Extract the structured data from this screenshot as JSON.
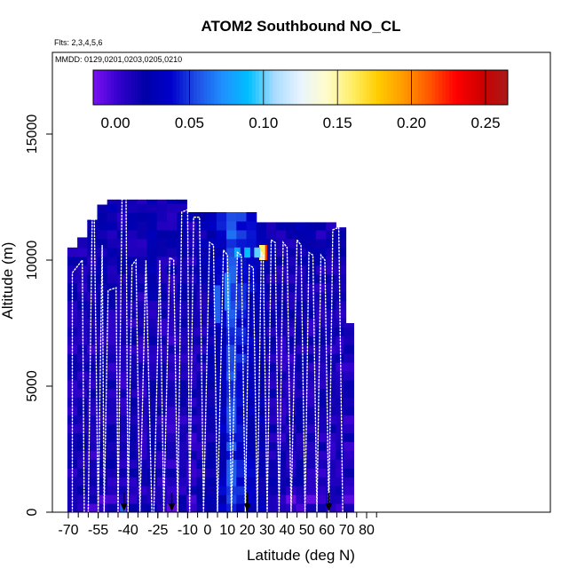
{
  "chart_data": {
    "type": "heatmap",
    "title": "ATOM2 Southbound NO_CL",
    "subtitle_flights": "Flts: 2,3,4,5,6",
    "subtitle_dates": "MMDD: 0129,0201,0203,0205,0210",
    "xlabel": "Latitude (deg N)",
    "ylabel": "Altitude (m)",
    "xlim": [
      -70,
      85
    ],
    "ylim": [
      0,
      17500
    ],
    "x_ticks": [
      -70,
      -55,
      -40,
      -25,
      -10,
      0,
      10,
      20,
      30,
      40,
      50,
      60,
      70,
      80
    ],
    "y_ticks": [
      0,
      5000,
      10000,
      15000
    ],
    "colorbar": {
      "min": -0.015,
      "max": 0.265,
      "ticks": [
        0.0,
        0.05,
        0.1,
        0.15,
        0.2,
        0.25
      ],
      "tick_labels": [
        "0.00",
        "0.05",
        "0.10",
        "0.15",
        "0.20",
        "0.25"
      ],
      "colors": [
        "#7a12f0",
        "#3300cc",
        "#0000a8",
        "#0000cc",
        "#1f4fe6",
        "#1e90ff",
        "#00bfff",
        "#a8dcff",
        "#e8f4ff",
        "#fffccc",
        "#ffee66",
        "#ffcc00",
        "#ff9900",
        "#ff5500",
        "#ff0000",
        "#cc0000",
        "#aa1a1a"
      ]
    },
    "curtain_columns": [
      {
        "lat": -68,
        "top": 10500,
        "base_value": 0.01
      },
      {
        "lat": -63,
        "top": 10900,
        "base_value": 0.012
      },
      {
        "lat": -58,
        "top": 11600,
        "base_value": 0.01
      },
      {
        "lat": -53,
        "top": 12200,
        "base_value": 0.015
      },
      {
        "lat": -48,
        "top": 12400,
        "base_value": 0.012
      },
      {
        "lat": -43,
        "top": 12400,
        "base_value": 0.01
      },
      {
        "lat": -38,
        "top": 12400,
        "base_value": 0.012
      },
      {
        "lat": -33,
        "top": 12400,
        "base_value": 0.01
      },
      {
        "lat": -28,
        "top": 12400,
        "base_value": 0.015
      },
      {
        "lat": -23,
        "top": 12400,
        "base_value": 0.012
      },
      {
        "lat": -18,
        "top": 12400,
        "base_value": 0.01
      },
      {
        "lat": -13,
        "top": 12400,
        "base_value": 0.012
      },
      {
        "lat": -8,
        "top": 11900,
        "base_value": 0.01
      },
      {
        "lat": -3,
        "top": 11900,
        "base_value": 0.015
      },
      {
        "lat": 2,
        "top": 11900,
        "base_value": 0.02
      },
      {
        "lat": 7,
        "top": 11900,
        "base_value": 0.03
      },
      {
        "lat": 12,
        "top": 11900,
        "base_value": 0.05
      },
      {
        "lat": 17,
        "top": 11900,
        "base_value": 0.04
      },
      {
        "lat": 22,
        "top": 11900,
        "base_value": 0.03
      },
      {
        "lat": 27,
        "top": 11500,
        "base_value": 0.025
      },
      {
        "lat": 32,
        "top": 11500,
        "base_value": 0.015
      },
      {
        "lat": 37,
        "top": 11500,
        "base_value": 0.012
      },
      {
        "lat": 42,
        "top": 11500,
        "base_value": 0.01
      },
      {
        "lat": 47,
        "top": 11500,
        "base_value": 0.015
      },
      {
        "lat": 52,
        "top": 11500,
        "base_value": 0.012
      },
      {
        "lat": 57,
        "top": 11500,
        "base_value": 0.01
      },
      {
        "lat": 62,
        "top": 11500,
        "base_value": 0.012
      },
      {
        "lat": 67,
        "top": 11300,
        "base_value": 0.01
      },
      {
        "lat": 71,
        "top": 7500,
        "base_value": 0.01
      }
    ],
    "highlight_cells": [
      {
        "lat": 28.5,
        "alt_low": 10000,
        "alt_high": 10600,
        "value": 0.22
      },
      {
        "lat": 27.5,
        "alt_low": 10000,
        "alt_high": 10600,
        "value": 0.16
      },
      {
        "lat": 25,
        "alt_low": 10100,
        "alt_high": 10500,
        "value": 0.1
      },
      {
        "lat": 20,
        "alt_low": 10100,
        "alt_high": 10500,
        "value": 0.09
      },
      {
        "lat": 15,
        "alt_low": 10100,
        "alt_high": 10500,
        "value": 0.08
      },
      {
        "lat": 10,
        "alt_low": 8000,
        "alt_high": 9500,
        "value": 0.07
      },
      {
        "lat": 5,
        "alt_low": 7500,
        "alt_high": 9000,
        "value": 0.06
      },
      {
        "lat": -42.5,
        "alt_low": 0,
        "alt_high": 350,
        "value": 0.06
      }
    ],
    "flight_profiles": [
      [
        [
          -68,
          0
        ],
        [
          -68,
          9500
        ],
        [
          -65,
          9800
        ],
        [
          -63,
          10000
        ],
        [
          -62,
          0
        ]
      ],
      [
        [
          -60,
          0
        ],
        [
          -58,
          11800
        ],
        [
          -57,
          12000
        ],
        [
          -55,
          0
        ]
      ],
      [
        [
          -55,
          0
        ],
        [
          -53,
          10600
        ],
        [
          -52,
          0
        ]
      ],
      [
        [
          -52,
          0
        ],
        [
          -50,
          8800
        ],
        [
          -46,
          8900
        ],
        [
          -45,
          0
        ]
      ],
      [
        [
          -45,
          0
        ],
        [
          -43,
          12400
        ],
        [
          -41,
          12500
        ],
        [
          -40,
          0
        ]
      ],
      [
        [
          -40,
          0
        ],
        [
          -38,
          9800
        ],
        [
          -36,
          10000
        ],
        [
          -34,
          0
        ]
      ],
      [
        [
          -34,
          0
        ],
        [
          -31,
          10000
        ],
        [
          -28,
          0
        ]
      ],
      [
        [
          -27,
          0
        ],
        [
          -24,
          10000
        ],
        [
          -22,
          0
        ]
      ],
      [
        [
          -22,
          0
        ],
        [
          -19,
          10100
        ],
        [
          -17,
          10000
        ],
        [
          -15,
          0
        ]
      ],
      [
        [
          -15,
          0
        ],
        [
          -13,
          11900
        ],
        [
          -10,
          12000
        ],
        [
          -9,
          0
        ]
      ],
      [
        [
          -9,
          0
        ],
        [
          -7,
          11700
        ],
        [
          -4,
          11700
        ],
        [
          -2,
          0
        ]
      ],
      [
        [
          -2,
          0
        ],
        [
          1,
          10700
        ],
        [
          3,
          10600
        ],
        [
          5,
          0
        ]
      ],
      [
        [
          5,
          0
        ],
        [
          8,
          10400
        ],
        [
          10,
          10200
        ],
        [
          12,
          0
        ]
      ],
      [
        [
          12,
          0
        ],
        [
          15,
          10300
        ],
        [
          17,
          10200
        ],
        [
          19,
          0
        ]
      ],
      [
        [
          19,
          0
        ],
        [
          21,
          9800
        ],
        [
          23,
          9700
        ],
        [
          25,
          0
        ]
      ],
      [
        [
          25,
          0
        ],
        [
          27,
          10300
        ],
        [
          28,
          10200
        ],
        [
          30,
          0
        ]
      ],
      [
        [
          30,
          0
        ],
        [
          32,
          10800
        ],
        [
          34,
          10700
        ],
        [
          36,
          0
        ]
      ],
      [
        [
          36,
          0
        ],
        [
          38,
          10700
        ],
        [
          40,
          10500
        ],
        [
          42,
          0
        ]
      ],
      [
        [
          42,
          0
        ],
        [
          45,
          10800
        ],
        [
          47,
          10600
        ],
        [
          49,
          0
        ]
      ],
      [
        [
          49,
          0
        ],
        [
          51,
          10300
        ],
        [
          53,
          10200
        ],
        [
          55,
          0
        ]
      ],
      [
        [
          55,
          0
        ],
        [
          57,
          10200
        ],
        [
          59,
          10000
        ],
        [
          61,
          0
        ]
      ],
      [
        [
          61,
          0
        ],
        [
          63,
          11200
        ],
        [
          66,
          11300
        ],
        [
          68,
          0
        ]
      ]
    ],
    "ground_markers": [
      -42,
      -18,
      20,
      61
    ]
  }
}
